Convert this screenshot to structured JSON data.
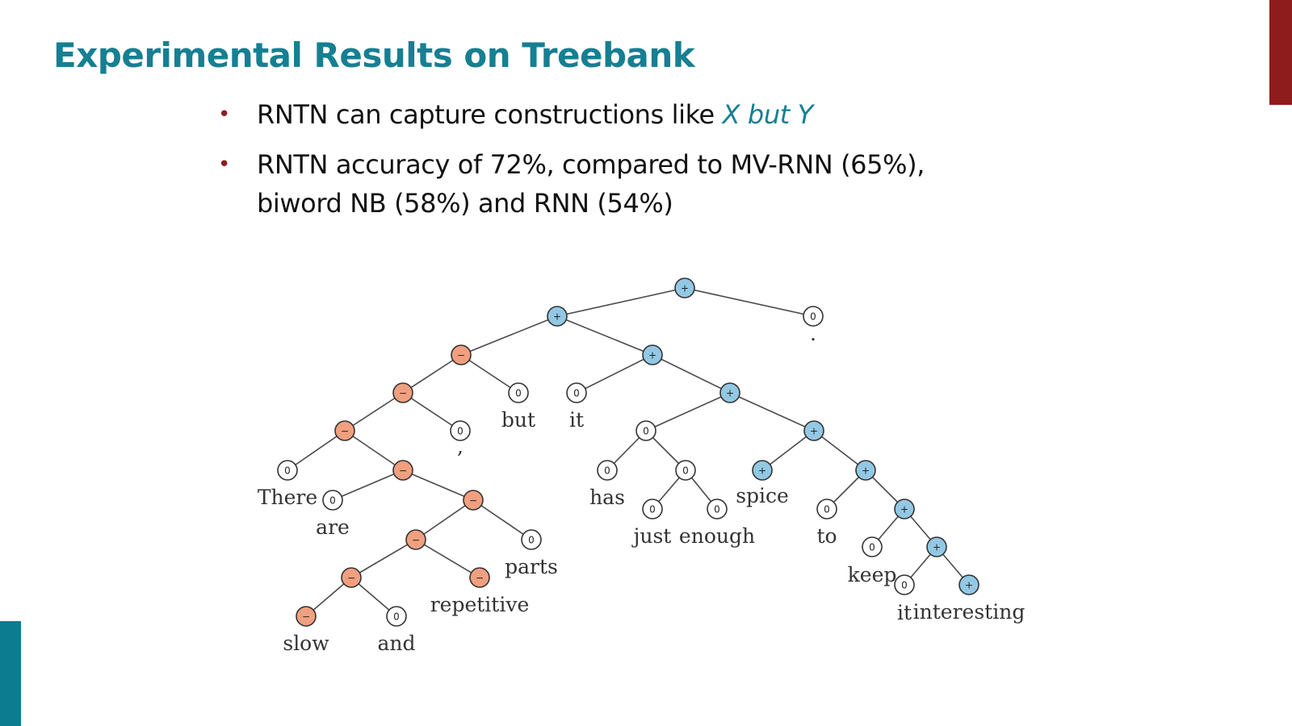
{
  "title": "Experimental Results on Treebank",
  "bullets": [
    {
      "pre": "RNTN can capture constructions like ",
      "highlight": "X but Y"
    },
    {
      "line1": "RNTN accuracy of 72%, compared to MV-RNN (65%),",
      "line2": "biword NB (58%) and RNN (54%)"
    }
  ],
  "colors": {
    "negative": "#f0a07f",
    "positive": "#93c8e4",
    "neutral": "#ffffff",
    "title": "#167f92",
    "bullet": "#8f1c1c"
  },
  "tree": {
    "nodes": [
      {
        "id": "root",
        "label": "+",
        "sentiment": "positive"
      },
      {
        "id": "n1",
        "label": "+",
        "sentiment": "positive"
      },
      {
        "id": "n2",
        "label": "0",
        "sentiment": "neutral",
        "word": "."
      },
      {
        "id": "n3",
        "label": "−",
        "sentiment": "negative"
      },
      {
        "id": "n4",
        "label": "+",
        "sentiment": "positive"
      },
      {
        "id": "n5",
        "label": "−",
        "sentiment": "negative"
      },
      {
        "id": "n6",
        "label": "0",
        "sentiment": "neutral",
        "word": "but"
      },
      {
        "id": "n7",
        "label": "0",
        "sentiment": "neutral",
        "word": "it"
      },
      {
        "id": "n8",
        "label": "+",
        "sentiment": "positive"
      },
      {
        "id": "n9",
        "label": "−",
        "sentiment": "negative"
      },
      {
        "id": "n10",
        "label": "0",
        "sentiment": "neutral",
        "word": ","
      },
      {
        "id": "n11",
        "label": "0",
        "sentiment": "neutral"
      },
      {
        "id": "n12",
        "label": "+",
        "sentiment": "positive"
      },
      {
        "id": "n13",
        "label": "0",
        "sentiment": "neutral",
        "word": "There"
      },
      {
        "id": "n14",
        "label": "−",
        "sentiment": "negative"
      },
      {
        "id": "n15",
        "label": "0",
        "sentiment": "neutral",
        "word": "has"
      },
      {
        "id": "n16",
        "label": "0",
        "sentiment": "neutral"
      },
      {
        "id": "n17",
        "label": "+",
        "sentiment": "positive",
        "word": "spice"
      },
      {
        "id": "n18",
        "label": "+",
        "sentiment": "positive"
      },
      {
        "id": "n19",
        "label": "0",
        "sentiment": "neutral",
        "word": "are"
      },
      {
        "id": "n20",
        "label": "−",
        "sentiment": "negative"
      },
      {
        "id": "n21",
        "label": "0",
        "sentiment": "neutral",
        "word": "just"
      },
      {
        "id": "n22",
        "label": "0",
        "sentiment": "neutral",
        "word": "enough"
      },
      {
        "id": "n23",
        "label": "0",
        "sentiment": "neutral",
        "word": "to"
      },
      {
        "id": "n24",
        "label": "+",
        "sentiment": "positive"
      },
      {
        "id": "n25",
        "label": "−",
        "sentiment": "negative"
      },
      {
        "id": "n26",
        "label": "0",
        "sentiment": "neutral",
        "word": "parts"
      },
      {
        "id": "n27",
        "label": "0",
        "sentiment": "neutral",
        "word": "keep"
      },
      {
        "id": "n28",
        "label": "+",
        "sentiment": "positive"
      },
      {
        "id": "n29",
        "label": "−",
        "sentiment": "negative"
      },
      {
        "id": "n30",
        "label": "−",
        "sentiment": "negative",
        "word": "repetitive"
      },
      {
        "id": "n31",
        "label": "0",
        "sentiment": "neutral",
        "word": "it"
      },
      {
        "id": "n32",
        "label": "+",
        "sentiment": "positive",
        "word": "interesting"
      },
      {
        "id": "n33",
        "label": "−",
        "sentiment": "negative",
        "word": "slow"
      },
      {
        "id": "n34",
        "label": "0",
        "sentiment": "neutral",
        "word": "and"
      }
    ],
    "edges": [
      [
        "root",
        "n1"
      ],
      [
        "root",
        "n2"
      ],
      [
        "n1",
        "n3"
      ],
      [
        "n1",
        "n4"
      ],
      [
        "n3",
        "n5"
      ],
      [
        "n3",
        "n6"
      ],
      [
        "n4",
        "n7"
      ],
      [
        "n4",
        "n8"
      ],
      [
        "n5",
        "n9"
      ],
      [
        "n5",
        "n10"
      ],
      [
        "n8",
        "n11"
      ],
      [
        "n8",
        "n12"
      ],
      [
        "n9",
        "n13"
      ],
      [
        "n9",
        "n14"
      ],
      [
        "n11",
        "n15"
      ],
      [
        "n11",
        "n16"
      ],
      [
        "n12",
        "n17"
      ],
      [
        "n12",
        "n18"
      ],
      [
        "n14",
        "n19"
      ],
      [
        "n14",
        "n20"
      ],
      [
        "n16",
        "n21"
      ],
      [
        "n16",
        "n22"
      ],
      [
        "n18",
        "n23"
      ],
      [
        "n18",
        "n24"
      ],
      [
        "n20",
        "n25"
      ],
      [
        "n20",
        "n26"
      ],
      [
        "n24",
        "n27"
      ],
      [
        "n24",
        "n28"
      ],
      [
        "n25",
        "n29"
      ],
      [
        "n25",
        "n30"
      ],
      [
        "n28",
        "n31"
      ],
      [
        "n28",
        "n32"
      ],
      [
        "n29",
        "n33"
      ],
      [
        "n29",
        "n34"
      ]
    ]
  }
}
